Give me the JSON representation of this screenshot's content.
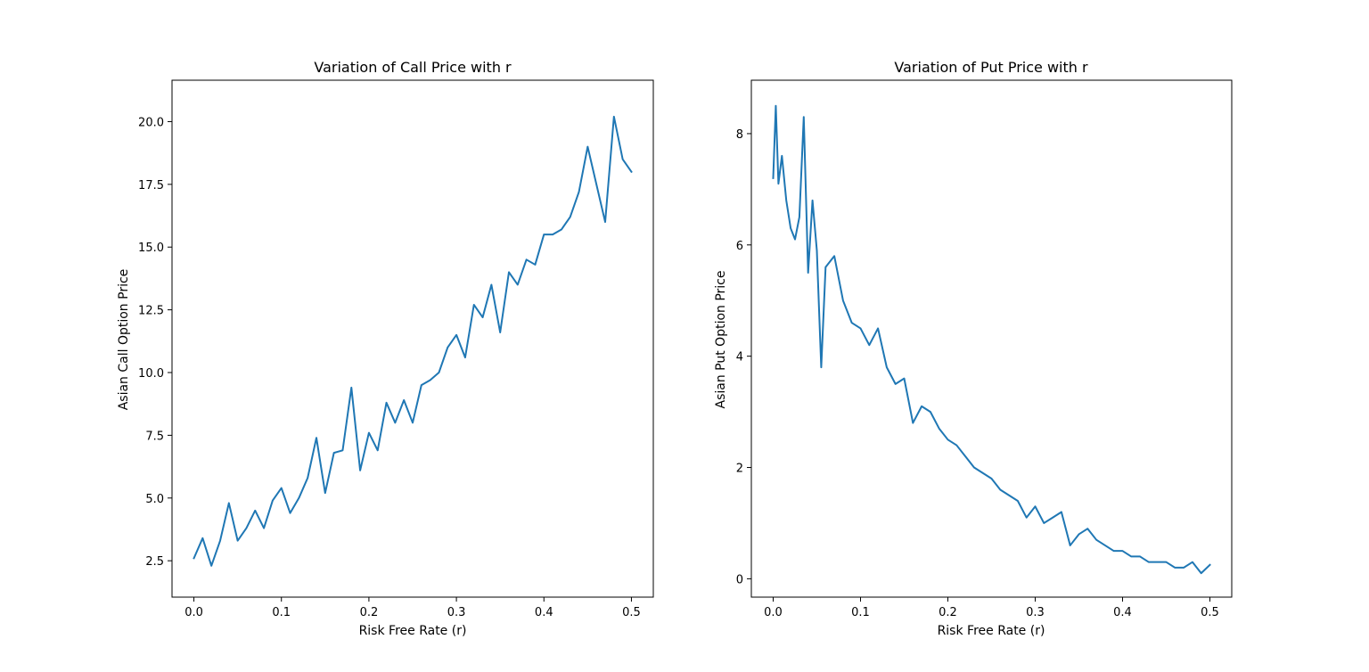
{
  "chart_data": [
    {
      "type": "line",
      "title": "Variation of Call Price with r",
      "xlabel": "Risk Free Rate (r)",
      "ylabel": "Asian Call Option Price",
      "xlim": [
        -0.025,
        0.525
      ],
      "ylim": [
        1.05,
        21.65
      ],
      "x_ticks": [
        0.0,
        0.1,
        0.2,
        0.3,
        0.4,
        0.5
      ],
      "x_tick_labels": [
        "0.0",
        "0.1",
        "0.2",
        "0.3",
        "0.4",
        "0.5"
      ],
      "y_ticks": [
        2.5,
        5.0,
        7.5,
        10.0,
        12.5,
        15.0,
        17.5,
        20.0
      ],
      "y_tick_labels": [
        "2.5",
        "5.0",
        "7.5",
        "10.0",
        "12.5",
        "15.0",
        "17.5",
        "20.0"
      ],
      "grid": false,
      "color": "#1f77b4",
      "series": [
        {
          "x": [
            0.0,
            0.01,
            0.02,
            0.03,
            0.04,
            0.05,
            0.06,
            0.07,
            0.08,
            0.09,
            0.1,
            0.11,
            0.12,
            0.13,
            0.14,
            0.15,
            0.16,
            0.17,
            0.18,
            0.19,
            0.2,
            0.21,
            0.22,
            0.23,
            0.24,
            0.25,
            0.26,
            0.27,
            0.28,
            0.29,
            0.3,
            0.31,
            0.32,
            0.33,
            0.34,
            0.35,
            0.36,
            0.37,
            0.38,
            0.39,
            0.4,
            0.41,
            0.42,
            0.43,
            0.44,
            0.45,
            0.46,
            0.47,
            0.48,
            0.49,
            0.5
          ],
          "y": [
            2.6,
            3.4,
            2.3,
            3.3,
            4.8,
            3.3,
            3.8,
            4.5,
            3.8,
            4.9,
            5.4,
            4.4,
            5.0,
            5.8,
            7.4,
            5.2,
            6.8,
            6.9,
            9.4,
            6.1,
            7.6,
            6.9,
            8.8,
            8.0,
            8.9,
            8.0,
            9.5,
            9.7,
            10.0,
            11.0,
            11.5,
            10.6,
            12.7,
            12.2,
            13.5,
            11.6,
            14.0,
            13.5,
            14.5,
            14.3,
            15.5,
            15.5,
            15.7,
            16.2,
            17.2,
            19.0,
            17.5,
            16.0,
            20.2,
            18.5,
            18.0
          ]
        }
      ]
    },
    {
      "type": "line",
      "title": "Variation of Put Price with r",
      "xlabel": "Risk Free Rate (r)",
      "ylabel": "Asian Put Option Price",
      "xlim": [
        -0.025,
        0.525
      ],
      "ylim": [
        -0.33,
        8.96
      ],
      "x_ticks": [
        0.0,
        0.1,
        0.2,
        0.3,
        0.4,
        0.5
      ],
      "x_tick_labels": [
        "0.0",
        "0.1",
        "0.2",
        "0.3",
        "0.4",
        "0.5"
      ],
      "y_ticks": [
        0,
        2,
        4,
        6,
        8
      ],
      "y_tick_labels": [
        "0",
        "2",
        "4",
        "6",
        "8"
      ],
      "grid": false,
      "color": "#1f77b4",
      "series": [
        {
          "x": [
            0.0,
            0.003,
            0.006,
            0.01,
            0.015,
            0.02,
            0.025,
            0.03,
            0.035,
            0.04,
            0.045,
            0.05,
            0.055,
            0.06,
            0.07,
            0.08,
            0.09,
            0.1,
            0.11,
            0.12,
            0.13,
            0.14,
            0.15,
            0.16,
            0.17,
            0.18,
            0.19,
            0.2,
            0.21,
            0.22,
            0.23,
            0.24,
            0.25,
            0.26,
            0.27,
            0.28,
            0.29,
            0.3,
            0.31,
            0.32,
            0.33,
            0.34,
            0.35,
            0.36,
            0.37,
            0.38,
            0.39,
            0.4,
            0.41,
            0.42,
            0.43,
            0.44,
            0.45,
            0.46,
            0.47,
            0.48,
            0.49,
            0.5
          ],
          "y": [
            7.2,
            8.5,
            7.1,
            7.6,
            6.8,
            6.3,
            6.1,
            6.5,
            8.3,
            5.5,
            6.8,
            5.9,
            3.8,
            5.6,
            5.8,
            5.0,
            4.6,
            4.5,
            4.2,
            4.5,
            3.8,
            3.5,
            3.6,
            2.8,
            3.1,
            3.0,
            2.7,
            2.5,
            2.4,
            2.2,
            2.0,
            1.9,
            1.8,
            1.6,
            1.5,
            1.4,
            1.1,
            1.3,
            1.0,
            1.1,
            1.2,
            0.6,
            0.8,
            0.9,
            0.7,
            0.6,
            0.5,
            0.5,
            0.4,
            0.4,
            0.3,
            0.3,
            0.3,
            0.2,
            0.2,
            0.3,
            0.1,
            0.25
          ]
        }
      ]
    }
  ]
}
